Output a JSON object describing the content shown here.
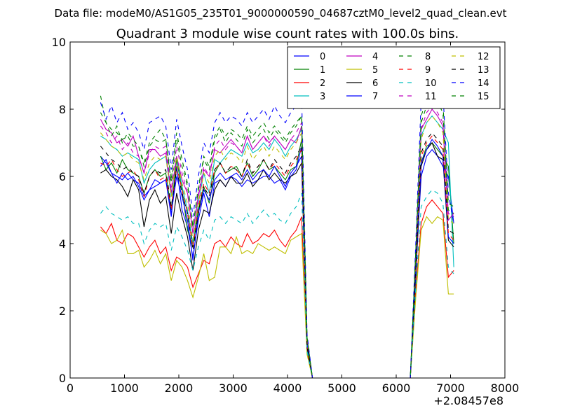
{
  "chart_data": {
    "type": "line",
    "suptitle": "Data file: modeM0/AS1G05_235T01_9000000590_04687cztM0_level2_quad_clean.evt",
    "title": "Quadrant 3 module wise count rates with 100.0s bins.",
    "xlabel": "",
    "ylabel": "",
    "x_offset_label": "+2.08457e8",
    "xlim": [
      0,
      8000
    ],
    "ylim": [
      0,
      10
    ],
    "x_ticks": [
      "0",
      "1000",
      "2000",
      "3000",
      "4000",
      "5000",
      "6000",
      "7000",
      "8000"
    ],
    "y_ticks": [
      "0",
      "2",
      "4",
      "6",
      "8",
      "10"
    ],
    "legend_position": "upper-right",
    "grid": false,
    "x": [
      560,
      660,
      760,
      860,
      960,
      1060,
      1160,
      1260,
      1360,
      1460,
      1560,
      1660,
      1760,
      1860,
      1960,
      2060,
      2160,
      2260,
      2360,
      2460,
      2560,
      2660,
      2760,
      2860,
      2960,
      3060,
      3160,
      3260,
      3360,
      3460,
      3560,
      3660,
      3760,
      3860,
      3960,
      4060,
      4160,
      4260,
      4360,
      4460,
      6260,
      6360,
      6460,
      6560,
      6660,
      6760,
      6860,
      6960,
      7060
    ],
    "series": [
      {
        "name": "0",
        "color": "#0000ff",
        "dash": false,
        "values": [
          6.6,
          6.4,
          6.1,
          6.0,
          5.9,
          6.1,
          5.9,
          5.8,
          5.4,
          5.6,
          5.7,
          5.8,
          5.9,
          4.8,
          6.3,
          5.0,
          4.5,
          3.6,
          4.7,
          5.5,
          4.8,
          5.8,
          5.9,
          5.7,
          6.0,
          5.9,
          5.7,
          5.9,
          5.8,
          5.9,
          6.0,
          6.0,
          5.8,
          5.9,
          5.6,
          6.0,
          6.2,
          6.9,
          1.0,
          0.0,
          0.0,
          3.2,
          6.0,
          6.6,
          6.8,
          6.6,
          6.3,
          6.0,
          4.6
        ]
      },
      {
        "name": "1",
        "color": "#008000",
        "dash": false,
        "values": [
          6.6,
          6.2,
          6.4,
          6.1,
          6.5,
          6.2,
          6.1,
          6.0,
          5.5,
          6.0,
          6.2,
          6.0,
          6.1,
          5.0,
          6.5,
          5.6,
          4.4,
          3.9,
          5.0,
          5.7,
          5.2,
          6.1,
          6.4,
          6.1,
          6.2,
          6.3,
          6.0,
          6.4,
          6.0,
          6.2,
          6.5,
          6.2,
          6.3,
          6.1,
          5.9,
          6.2,
          6.3,
          7.1,
          1.0,
          0.0,
          0.0,
          3.3,
          6.4,
          6.9,
          7.0,
          6.8,
          6.6,
          6.3,
          4.0
        ]
      },
      {
        "name": "2",
        "color": "#ff0000",
        "dash": false,
        "values": [
          4.5,
          4.3,
          4.6,
          4.1,
          4.0,
          4.3,
          4.2,
          3.9,
          3.6,
          3.9,
          4.1,
          3.7,
          3.9,
          3.2,
          3.6,
          3.5,
          3.3,
          2.7,
          3.1,
          3.5,
          3.4,
          4.0,
          4.1,
          3.9,
          4.2,
          4.0,
          3.9,
          4.3,
          4.0,
          4.1,
          4.3,
          4.2,
          4.4,
          4.1,
          3.9,
          4.2,
          4.4,
          4.8,
          0.8,
          0.0,
          0.0,
          2.6,
          4.6,
          5.1,
          5.3,
          5.1,
          4.9,
          3.0,
          3.2
        ]
      },
      {
        "name": "3",
        "color": "#00bfbf",
        "dash": false,
        "values": [
          7.2,
          7.1,
          6.9,
          6.8,
          6.6,
          6.7,
          6.6,
          6.5,
          5.8,
          6.2,
          6.4,
          6.5,
          6.6,
          5.4,
          6.6,
          5.7,
          5.0,
          4.0,
          5.2,
          6.1,
          5.5,
          6.5,
          6.4,
          6.6,
          6.8,
          6.7,
          6.6,
          7.0,
          6.7,
          6.8,
          7.0,
          6.8,
          7.1,
          6.9,
          6.6,
          6.9,
          7.1,
          7.4,
          1.1,
          0.0,
          0.0,
          3.5,
          7.2,
          7.6,
          7.8,
          7.6,
          7.4,
          7.0,
          3.3
        ]
      },
      {
        "name": "4",
        "color": "#bf00bf",
        "dash": false,
        "values": [
          7.7,
          7.4,
          7.3,
          7.0,
          7.1,
          6.9,
          7.2,
          6.6,
          6.1,
          6.8,
          6.8,
          6.6,
          6.7,
          5.5,
          6.6,
          5.9,
          5.5,
          4.3,
          5.4,
          6.2,
          6.0,
          6.8,
          6.7,
          6.9,
          7.1,
          6.9,
          6.7,
          7.2,
          6.8,
          7.0,
          7.2,
          7.0,
          7.2,
          7.0,
          6.8,
          7.1,
          7.0,
          7.5,
          1.1,
          0.0,
          0.0,
          3.6,
          7.4,
          7.7,
          8.0,
          7.8,
          7.5,
          4.7,
          4.9
        ]
      },
      {
        "name": "5",
        "color": "#bfbf00",
        "dash": false,
        "values": [
          4.4,
          4.3,
          4.0,
          4.1,
          4.4,
          3.7,
          3.7,
          3.8,
          3.3,
          3.5,
          3.8,
          3.4,
          3.7,
          2.9,
          3.5,
          3.3,
          2.9,
          2.4,
          3.0,
          3.7,
          2.9,
          3.0,
          3.9,
          3.9,
          3.7,
          4.2,
          3.7,
          3.8,
          3.7,
          4.0,
          3.9,
          3.8,
          3.9,
          3.8,
          3.7,
          4.1,
          4.2,
          4.3,
          0.7,
          0.0,
          0.0,
          2.4,
          4.4,
          4.8,
          4.6,
          4.8,
          4.7,
          2.5,
          2.5
        ]
      },
      {
        "name": "6",
        "color": "#000000",
        "dash": false,
        "values": [
          6.1,
          6.2,
          6.0,
          5.9,
          5.7,
          5.4,
          5.9,
          5.6,
          4.5,
          5.3,
          5.6,
          5.2,
          5.4,
          4.3,
          5.5,
          4.8,
          4.2,
          3.2,
          4.4,
          5.0,
          4.9,
          5.6,
          5.9,
          5.7,
          6.0,
          5.8,
          5.8,
          6.1,
          5.7,
          5.9,
          6.2,
          5.9,
          6.1,
          5.9,
          5.8,
          6.0,
          6.1,
          6.4,
          0.9,
          0.0,
          0.0,
          3.0,
          6.3,
          6.8,
          7.0,
          6.6,
          6.5,
          4.1,
          3.9
        ]
      },
      {
        "name": "7",
        "color": "#0000ff",
        "dash": false,
        "values": [
          6.3,
          6.5,
          6.1,
          5.8,
          6.1,
          5.9,
          6.0,
          5.7,
          5.3,
          5.6,
          5.9,
          5.8,
          5.9,
          4.9,
          6.0,
          5.4,
          4.7,
          3.5,
          4.9,
          5.6,
          5.3,
          5.9,
          6.1,
          5.9,
          6.0,
          6.1,
          5.9,
          6.2,
          5.9,
          6.1,
          6.2,
          6.0,
          6.3,
          6.0,
          5.7,
          6.1,
          6.3,
          6.6,
          1.0,
          0.0,
          0.0,
          3.2,
          6.4,
          6.8,
          7.1,
          6.9,
          6.6,
          4.2,
          4.0
        ]
      },
      {
        "name": "8",
        "color": "#008000",
        "dash": true,
        "values": [
          8.4,
          7.6,
          7.2,
          7.5,
          7.0,
          7.3,
          7.1,
          6.9,
          6.4,
          7.0,
          7.2,
          7.4,
          7.1,
          5.9,
          7.3,
          6.5,
          5.8,
          4.5,
          5.6,
          6.6,
          6.3,
          7.2,
          7.5,
          7.2,
          7.4,
          7.3,
          7.1,
          7.5,
          7.2,
          7.4,
          7.6,
          7.3,
          7.5,
          7.3,
          7.1,
          7.4,
          7.6,
          7.8,
          1.2,
          0.0,
          0.0,
          3.8,
          7.8,
          8.3,
          8.5,
          8.4,
          8.2,
          5.2,
          5.1
        ]
      },
      {
        "name": "9",
        "color": "#ff0000",
        "dash": true,
        "values": [
          6.4,
          6.3,
          6.5,
          6.2,
          6.0,
          6.1,
          6.2,
          5.9,
          5.4,
          6.0,
          6.2,
          5.9,
          6.0,
          5.0,
          6.3,
          5.6,
          4.9,
          3.9,
          5.1,
          5.8,
          5.5,
          6.2,
          6.4,
          6.1,
          6.3,
          6.2,
          6.0,
          6.4,
          6.1,
          6.3,
          6.5,
          6.2,
          6.4,
          6.2,
          6.0,
          6.3,
          6.5,
          6.8,
          1.0,
          0.0,
          0.0,
          3.3,
          6.6,
          7.0,
          7.2,
          7.0,
          6.8,
          4.3,
          4.1
        ]
      },
      {
        "name": "10",
        "color": "#00bfbf",
        "dash": true,
        "values": [
          4.9,
          5.1,
          4.9,
          4.8,
          4.7,
          4.8,
          4.6,
          4.6,
          4.0,
          4.4,
          4.6,
          4.5,
          4.6,
          3.8,
          4.5,
          4.2,
          3.8,
          3.2,
          3.9,
          4.4,
          4.1,
          4.7,
          4.8,
          4.6,
          4.8,
          4.7,
          4.6,
          4.9,
          4.6,
          4.8,
          5.0,
          4.8,
          4.9,
          4.7,
          4.6,
          4.9,
          5.1,
          5.5,
          0.8,
          0.0,
          0.0,
          2.7,
          5.1,
          5.4,
          5.6,
          5.5,
          5.2,
          3.3,
          3.1
        ]
      },
      {
        "name": "11",
        "color": "#bf00bf",
        "dash": true,
        "values": [
          7.5,
          7.3,
          7.0,
          7.2,
          6.8,
          7.0,
          6.7,
          6.6,
          6.1,
          6.7,
          6.9,
          6.8,
          6.9,
          5.6,
          6.9,
          6.1,
          5.5,
          4.3,
          5.5,
          6.3,
          6.0,
          6.9,
          7.1,
          6.8,
          7.0,
          6.9,
          6.7,
          7.2,
          6.8,
          7.0,
          7.2,
          6.9,
          7.2,
          7.0,
          6.8,
          7.1,
          7.3,
          7.6,
          1.1,
          0.0,
          0.0,
          3.6,
          7.4,
          7.9,
          8.1,
          7.9,
          7.6,
          4.9,
          4.8
        ]
      },
      {
        "name": "12",
        "color": "#bfbf00",
        "dash": true,
        "values": [
          7.3,
          7.1,
          6.9,
          6.8,
          6.6,
          6.7,
          6.5,
          6.4,
          5.9,
          6.4,
          6.6,
          6.5,
          6.6,
          5.4,
          6.6,
          5.8,
          5.2,
          4.1,
          5.2,
          6.1,
          5.8,
          6.6,
          6.8,
          6.5,
          6.7,
          6.6,
          6.4,
          6.9,
          6.5,
          6.7,
          6.9,
          6.6,
          6.9,
          6.7,
          6.5,
          6.8,
          7.0,
          7.3,
          1.1,
          0.0,
          0.0,
          3.5,
          7.1,
          7.6,
          7.8,
          7.6,
          7.3,
          4.7,
          4.6
        ]
      },
      {
        "name": "13",
        "color": "#000000",
        "dash": true,
        "values": [
          6.9,
          6.7,
          6.5,
          6.4,
          6.2,
          6.3,
          6.1,
          6.0,
          5.5,
          6.0,
          6.2,
          6.1,
          6.2,
          5.1,
          6.2,
          5.5,
          4.9,
          3.8,
          4.9,
          5.7,
          5.4,
          6.2,
          6.4,
          6.1,
          6.3,
          6.2,
          6.0,
          6.5,
          6.1,
          6.3,
          6.5,
          6.2,
          6.5,
          6.3,
          6.1,
          6.4,
          6.6,
          6.9,
          1.0,
          0.0,
          0.0,
          3.3,
          6.7,
          7.1,
          7.3,
          7.1,
          6.9,
          4.4,
          4.3
        ]
      },
      {
        "name": "14",
        "color": "#0000ff",
        "dash": true,
        "values": [
          8.2,
          7.7,
          8.1,
          7.6,
          7.9,
          7.4,
          7.6,
          7.3,
          6.8,
          7.6,
          7.7,
          7.8,
          7.5,
          6.2,
          7.7,
          6.9,
          6.2,
          4.8,
          6.0,
          7.0,
          6.7,
          7.6,
          7.9,
          7.6,
          7.8,
          7.7,
          7.5,
          7.9,
          7.6,
          7.8,
          8.0,
          7.7,
          8.1,
          7.8,
          7.6,
          7.9,
          8.1,
          8.4,
          1.3,
          0.0,
          0.0,
          4.0,
          8.3,
          9.1,
          8.7,
          8.9,
          8.5,
          5.5,
          4.6
        ]
      },
      {
        "name": "15",
        "color": "#008000",
        "dash": true,
        "values": [
          7.9,
          7.6,
          7.4,
          7.3,
          7.1,
          7.2,
          6.9,
          6.9,
          6.3,
          6.9,
          7.1,
          7.0,
          7.1,
          5.8,
          7.1,
          6.3,
          5.7,
          4.5,
          5.7,
          6.5,
          6.2,
          7.1,
          7.4,
          7.0,
          7.3,
          7.1,
          6.9,
          7.4,
          7.0,
          7.2,
          7.4,
          7.1,
          7.4,
          7.2,
          7.0,
          7.3,
          7.5,
          7.8,
          1.2,
          0.0,
          0.0,
          3.7,
          7.6,
          8.1,
          8.4,
          8.2,
          7.9,
          5.0,
          4.9
        ]
      }
    ]
  }
}
